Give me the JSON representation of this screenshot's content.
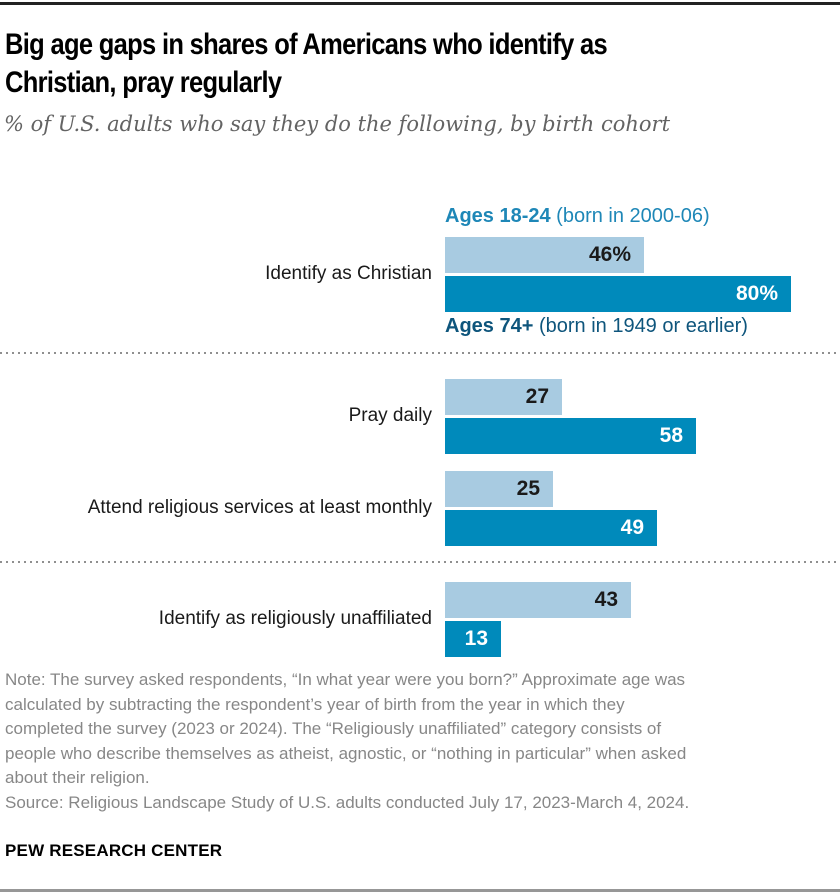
{
  "header": {
    "title": "Big age gaps in shares of Americans who identify as\nChristian, pray regularly",
    "subtitle": "% of U.S. adults who say they do the following, by birth cohort"
  },
  "legend": {
    "young_bold": "Ages 18-24",
    "young_rest": " (born in 2000-06)",
    "old_bold": "Ages 74+",
    "old_rest": " (born in 1949 or earlier)"
  },
  "chart_data": {
    "type": "bar",
    "orientation": "horizontal",
    "title": "Big age gaps in shares of Americans who identify as Christian, pray regularly",
    "subtitle": "% of U.S. adults who say they do the following, by birth cohort",
    "categories": [
      "Identify as Christian",
      "Pray daily",
      "Attend religious services at least monthly",
      "Identify as religiously unaffiliated"
    ],
    "series": [
      {
        "name": "Ages 18-24 (born in 2000-06)",
        "color": "#a8cbe1",
        "label_color": "#1e87b7",
        "values": [
          46,
          27,
          25,
          43
        ],
        "labels": [
          "46%",
          "27",
          "25",
          "43"
        ]
      },
      {
        "name": "Ages 74+ (born in 1949 or earlier)",
        "color": "#008abb",
        "label_color": "#0e557c",
        "values": [
          80,
          58,
          49,
          13
        ],
        "labels": [
          "80%",
          "58",
          "49",
          "13"
        ]
      }
    ],
    "xlim": [
      0,
      100
    ],
    "grid": false,
    "legend_position": "inline-first-group",
    "value_labels": "inside-end"
  },
  "footer": {
    "note": "Note: The survey asked respondents, “In what year were you born?” Approximate age was\ncalculated by subtracting the respondent’s year of birth from the year in which they\ncompleted the survey (2023 or 2024). The “Religiously unaffiliated” category consists of\npeople who describe themselves as atheist, agnostic, or “nothing in particular” when asked\nabout their religion.",
    "source": "Source: Religious Landscape Study of U.S. adults conducted July 17, 2023-March 4, 2024.",
    "branding": "PEW RESEARCH CENTER"
  },
  "colors": {
    "light_bar": "#a8cbe1",
    "dark_bar": "#008abb",
    "legend_young_text": "#1e87b7",
    "legend_old_text": "#0e557c",
    "note_text": "#878787",
    "top_rule": "#222222",
    "bottom_rule": "#979797"
  }
}
